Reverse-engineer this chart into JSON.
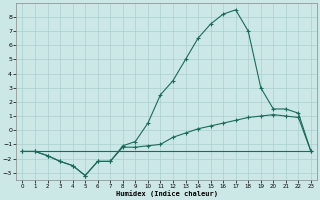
{
  "xlabel": "Humidex (Indice chaleur)",
  "bg_color": "#cce8e6",
  "grid_color": "#aacfcd",
  "line_color": "#1a6b5a",
  "xlim": [
    -0.5,
    23.5
  ],
  "ylim": [
    -3.5,
    9.0
  ],
  "xticks": [
    0,
    1,
    2,
    3,
    4,
    5,
    6,
    7,
    8,
    9,
    10,
    11,
    12,
    13,
    14,
    15,
    16,
    17,
    18,
    19,
    20,
    21,
    22,
    23
  ],
  "yticks": [
    -3,
    -2,
    -1,
    0,
    1,
    2,
    3,
    4,
    5,
    6,
    7,
    8
  ],
  "line1_x": [
    0,
    1,
    2,
    3,
    4,
    5,
    6,
    7,
    8,
    9,
    10,
    11,
    12,
    13,
    14,
    15,
    16,
    17,
    18,
    19,
    20,
    21,
    22,
    23
  ],
  "line1_y": [
    -1.5,
    -1.5,
    -1.8,
    -2.2,
    -2.5,
    -3.2,
    -2.2,
    -2.2,
    -1.1,
    -0.8,
    0.5,
    2.5,
    3.5,
    5.0,
    6.5,
    7.5,
    8.2,
    8.5,
    7.0,
    3.0,
    1.5,
    1.5,
    1.2,
    -1.5
  ],
  "line2_x": [
    0,
    1,
    2,
    3,
    4,
    5,
    6,
    7,
    8,
    9,
    10,
    11,
    12,
    13,
    14,
    15,
    16,
    17,
    18,
    19,
    20,
    21,
    22,
    23
  ],
  "line2_y": [
    -1.5,
    -1.5,
    -1.8,
    -2.2,
    -2.5,
    -3.2,
    -2.2,
    -2.2,
    -1.2,
    -1.2,
    -1.1,
    -1.0,
    -0.5,
    -0.2,
    0.1,
    0.3,
    0.5,
    0.7,
    0.9,
    1.0,
    1.1,
    1.0,
    0.9,
    -1.5
  ],
  "line3_x": [
    0,
    23
  ],
  "line3_y": [
    -1.5,
    -1.5
  ]
}
